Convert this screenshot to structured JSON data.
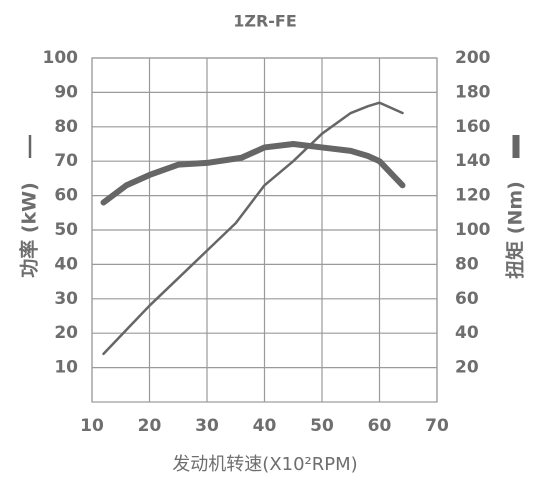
{
  "chart_data": {
    "type": "line",
    "title": "1ZR-FE",
    "xlabel": "发动机转速(X10²RPM)",
    "ylabel": "功率 (kW)",
    "y2label": "扭矩 (Nm)",
    "xlim": [
      10,
      70
    ],
    "xticks": [
      10,
      20,
      30,
      40,
      50,
      60,
      70
    ],
    "ylim": [
      0,
      100
    ],
    "yticks": [
      10,
      20,
      30,
      40,
      50,
      60,
      70,
      80,
      90,
      100
    ],
    "y2lim": [
      0,
      200
    ],
    "y2ticks": [
      20,
      40,
      60,
      80,
      100,
      120,
      140,
      160,
      180,
      200
    ],
    "grid": true,
    "series": [
      {
        "color": "#666666",
        "x": [
          12,
          16,
          20,
          25,
          30,
          35,
          40,
          45,
          50,
          55,
          58,
          60,
          64
        ],
        "values": [
          14,
          21,
          28,
          36,
          44,
          52,
          63,
          70,
          78,
          84,
          86,
          87,
          84
        ]
      },
      {
        "color": "#666666",
        "axis": "y2",
        "x": [
          12,
          16,
          20,
          25,
          30,
          36,
          40,
          45,
          50,
          55,
          58,
          60,
          64
        ],
        "values": [
          116,
          126,
          132,
          138,
          139,
          142,
          148,
          150,
          148,
          146,
          143,
          140,
          126
        ]
      }
    ]
  }
}
